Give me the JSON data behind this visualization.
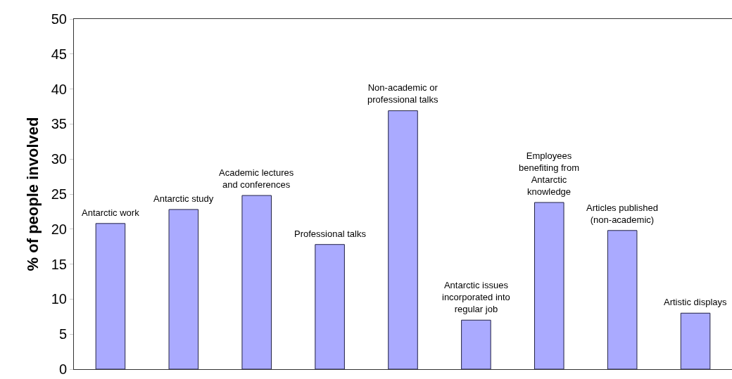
{
  "chart_data": {
    "type": "bar",
    "ylabel": "% of people involved",
    "categories": [
      "Antarctic work",
      "Antarctic study",
      "Academic lectures and conferences",
      "Professional talks",
      "Non-academic or professional talks",
      "Antarctic issues incorporated into regular job",
      "Employees benefiting from Antarctic knowledge",
      "Articles published (non-academic)",
      "Artistic displays"
    ],
    "values": [
      20.8,
      22.8,
      24.8,
      17.8,
      36.9,
      7,
      23.8,
      19.8,
      8
    ],
    "color": "#aaaaff",
    "ylim": [
      0,
      50
    ],
    "yticks": [
      0,
      5,
      10,
      15,
      20,
      25,
      30,
      35,
      40,
      45,
      50
    ],
    "grid": false,
    "tick_labels": "y"
  }
}
